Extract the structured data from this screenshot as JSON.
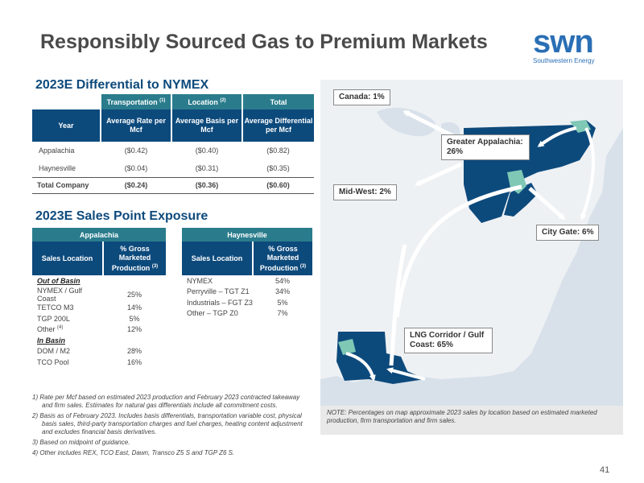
{
  "title": "Responsibly Sourced Gas to Premium Markets",
  "logo": {
    "main": "swn",
    "sub": "Southwestern Energy"
  },
  "differential": {
    "title": "2023E Differential to NYMEX",
    "group_headers": [
      "Transportation",
      "Location",
      "Total"
    ],
    "group_sup": [
      "(1)",
      "(2)",
      ""
    ],
    "headers": [
      "Year",
      "Average Rate per Mcf",
      "Average Basis per Mcf",
      "Average Differential per Mcf"
    ],
    "rows": [
      [
        "Appalachia",
        "($0.42)",
        "($0.40)",
        "($0.82)"
      ],
      [
        "Haynesville",
        "($0.04)",
        "($0.31)",
        "($0.35)"
      ]
    ],
    "total": [
      "Total Company",
      "($0.24)",
      "($0.36)",
      "($0.60)"
    ]
  },
  "sales_point": {
    "title": "2023E Sales Point Exposure",
    "appalachia": {
      "group": "Appalachia",
      "headers": [
        "Sales Location",
        "% Gross Marketed Production"
      ],
      "header_sup": "(3)",
      "out_label": "Out of Basin",
      "out_rows": [
        [
          "NYMEX / Gulf Coast",
          "25%"
        ],
        [
          "TETCO M3",
          "14%"
        ],
        [
          "TGP 200L",
          "5%"
        ],
        [
          "Other",
          "12%"
        ]
      ],
      "other_sup": "(4)",
      "in_label": "In Basin",
      "in_rows": [
        [
          "DOM / M2",
          "28%"
        ],
        [
          "TCO Pool",
          "16%"
        ]
      ]
    },
    "haynesville": {
      "group": "Haynesville",
      "headers": [
        "Sales Location",
        "% Gross Marketed Production"
      ],
      "header_sup": "(3)",
      "rows": [
        [
          "NYMEX",
          "54%"
        ],
        [
          "Perryville – TGT Z1",
          "34%"
        ],
        [
          "Industrials – FGT Z3",
          "5%"
        ],
        [
          "Other – TGP Z0",
          "7%"
        ]
      ]
    }
  },
  "footnotes": [
    "1) Rate per Mcf based on estimated 2023 production and February 2023 contracted takeaway and firm sales. Estimates for natural gas differentials include all commitment costs.",
    "2) Basis as of February 2023. Includes basis differentials, transportation variable cost, physical basis sales, third-party transportation charges and fuel charges, heating content adjustment and excludes financial basis derivatives.",
    "3) Based on midpoint of guidance.",
    "4) Other includes REX, TCO East, Dawn, Transco Z5 S and TGP Z6 S."
  ],
  "map": {
    "callouts": {
      "canada": "Canada: 1%",
      "greater_appalachia": "Greater Appalachia: 26%",
      "midwest": "Mid-West: 2%",
      "city_gate": "City Gate: 6%",
      "lng": "LNG Corridor / Gulf Coast: 65%"
    },
    "note": "NOTE: Percentages on map approximate 2023 sales by location based on estimated marketed production, firm transportation and firm sales.",
    "colors": {
      "water": "#d8e1ea",
      "land": "#eef1f4",
      "highlight": "#0d4a7c",
      "teal": "#7fc8b6"
    }
  },
  "page_number": "41"
}
